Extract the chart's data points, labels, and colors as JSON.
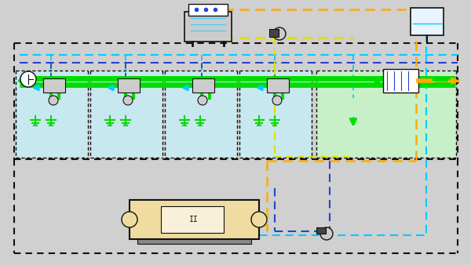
{
  "bg_outer": "#d0d0d0",
  "bg_upper_box": "#c8e8f0",
  "bg_lower_box": "#d8d8d8",
  "bg_green_room": "#c8f0c8",
  "border_color": "#222222",
  "green_pipe_color": "#00dd00",
  "cyan_dash_color": "#00ccff",
  "blue_dash_color": "#2244cc",
  "orange_dash_color": "#ffaa00",
  "yellow_dash_color": "#dddd00",
  "figsize": [
    6.0,
    3.38
  ],
  "dpi": 100
}
